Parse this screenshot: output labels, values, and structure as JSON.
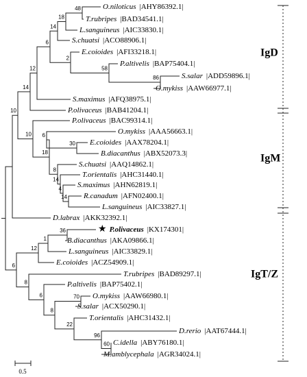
{
  "leaves": [
    {
      "species": "O.niloticus",
      "accession": "|AHY86392.1|"
    },
    {
      "species": "T.rubripes",
      "accession": "|BAD34541.1|"
    },
    {
      "species": "L.sanguineus",
      "accession": "|AIC33830.1|"
    },
    {
      "species": "S.chuatsi",
      "accession": "|ACO88906.1|"
    },
    {
      "species": "E.coioides",
      "accession": "|AFI33218.1|"
    },
    {
      "species": "P.altivelis",
      "accession": "|BAP75404.1|"
    },
    {
      "species": "S.salar",
      "accession": "|ADD59896.1|"
    },
    {
      "species": "O.mykiss",
      "accession": "|AAW66977.1|"
    },
    {
      "species": "S.maximus",
      "accession": "|AFQ38975.1|"
    },
    {
      "species": "P.olivaceus",
      "accession": "|BAB41204.1|"
    },
    {
      "species": "P.olivaceus",
      "accession": "|BAC99314.1|"
    },
    {
      "species": "O.mykiss",
      "accession": "|AAA56663.1|"
    },
    {
      "species": "E.coioides",
      "accession": "|AAX78204.1|"
    },
    {
      "species": "B.diacanthus",
      "accession": "|ABX52073.3|"
    },
    {
      "species": "S.chuatsi",
      "accession": "|AAQ14862.1|"
    },
    {
      "species": "T.orientalis",
      "accession": "|AHC31440.1|"
    },
    {
      "species": "S.maximus",
      "accession": "|AHN62819.1|"
    },
    {
      "species": "R.canadum",
      "accession": "|AFN02400.1|"
    },
    {
      "species": "L.sanguineus",
      "accession": "|AIC33827.1|"
    },
    {
      "species": "D.labrax",
      "accession": "|AKK32392.1|"
    },
    {
      "species": "P.olivaceus",
      "accession": "|KX174301|",
      "marker": "★"
    },
    {
      "species": "B.diacanthus",
      "accession": "|AKA09866.1|"
    },
    {
      "species": "L.sanguineus",
      "accession": "|AIC33829.1|"
    },
    {
      "species": "E.coioides",
      "accession": "|ACZ54909.1|"
    },
    {
      "species": "T.rubripes",
      "accession": "|BAD89297.1|"
    },
    {
      "species": "P.altivelis",
      "accession": "|BAP75402.1|"
    },
    {
      "species": "O.mykiss",
      "accession": "|AAW66980.1|"
    },
    {
      "species": "S.salar",
      "accession": "|ACX50290.1|"
    },
    {
      "species": "T.orientalis",
      "accession": "|AHC31432.1|"
    },
    {
      "species": "D.rerio",
      "accession": "|AAT67444.1|"
    },
    {
      "species": "C.idella",
      "accession": "|ABY76180.1|"
    },
    {
      "species": "M.amblycephala",
      "accession": "|AGR34024.1|"
    }
  ],
  "bootstrap": [
    48,
    18,
    14,
    86,
    58,
    2,
    6,
    12,
    14,
    30,
    6,
    14,
    4,
    14,
    8,
    18,
    10,
    10,
    36,
    1,
    12,
    70,
    60,
    96,
    22,
    8,
    6,
    8,
    6
  ],
  "groups": [
    {
      "label": "IgD"
    },
    {
      "label": "IgM"
    },
    {
      "label": "IgT/Z"
    }
  ],
  "scale_bar": {
    "label": "0.5"
  }
}
